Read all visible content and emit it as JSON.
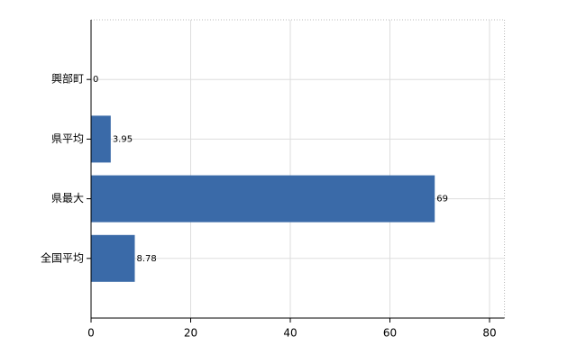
{
  "chart_data": {
    "type": "bar",
    "orientation": "horizontal",
    "categories": [
      "興部町",
      "県平均",
      "県最大",
      "全国平均"
    ],
    "values": [
      0,
      3.95,
      69,
      8.78
    ],
    "color": "#3a6aa8",
    "xlim": [
      0,
      83
    ],
    "xticks": [
      0,
      20,
      40,
      60,
      80
    ],
    "grid": true
  }
}
